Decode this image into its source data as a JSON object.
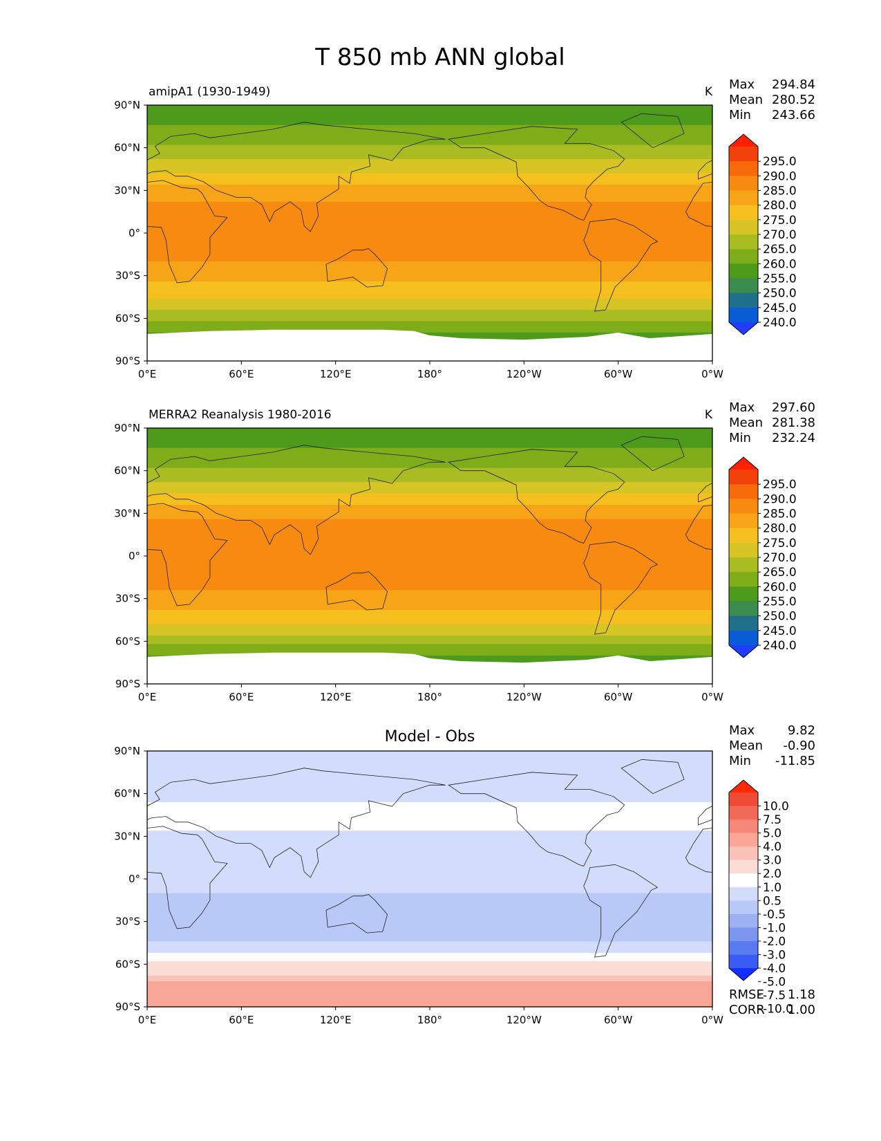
{
  "figure": {
    "title": "T 850 mb ANN global"
  },
  "colors": {
    "abs_levels": [
      {
        "color": "#1f3cff"
      },
      {
        "color": "#0a5bd6"
      },
      {
        "color": "#1f6f8b"
      },
      {
        "color": "#3b8a4e"
      },
      {
        "color": "#4e9a1c"
      },
      {
        "color": "#7fad1a"
      },
      {
        "color": "#a9bd22"
      },
      {
        "color": "#d6c524"
      },
      {
        "color": "#f5bf1f"
      },
      {
        "color": "#f7a418"
      },
      {
        "color": "#f78a10"
      },
      {
        "color": "#f66a0b"
      },
      {
        "color": "#f2410a"
      },
      {
        "color": "#ff2000"
      }
    ],
    "diff_levels": [
      {
        "color": "#1230ff"
      },
      {
        "color": "#3a5cf5"
      },
      {
        "color": "#5a7af0"
      },
      {
        "color": "#7d96f0"
      },
      {
        "color": "#9cb0f2"
      },
      {
        "color": "#b8c8f7"
      },
      {
        "color": "#d3ddfb"
      },
      {
        "color": "#ffffff"
      },
      {
        "color": "#fcdcd6"
      },
      {
        "color": "#fbc2b8"
      },
      {
        "color": "#f8a698"
      },
      {
        "color": "#f58878"
      },
      {
        "color": "#f26a58"
      },
      {
        "color": "#ef4a36"
      },
      {
        "color": "#ff2a00"
      }
    ],
    "continent_outline": "#202020"
  },
  "chart_data": [
    {
      "type": "heatmap",
      "name": "model",
      "title": "amipA1 (1930-1949)",
      "units": "K",
      "stats": {
        "max_label": "Max",
        "max": "294.84",
        "mean_label": "Mean",
        "mean": "280.52",
        "min_label": "Min",
        "min": "243.66"
      },
      "x_ticks": [
        "0°E",
        "60°E",
        "120°E",
        "180°",
        "120°W",
        "60°W",
        "0°W"
      ],
      "y_ticks": [
        "90°N",
        "60°N",
        "30°N",
        "0°",
        "30°S",
        "60°S",
        "90°S"
      ],
      "xlim": [
        0,
        360
      ],
      "ylim": [
        -90,
        90
      ],
      "colorbar_labels": [
        "295.0",
        "290.0",
        "285.0",
        "280.0",
        "275.0",
        "270.0",
        "265.0",
        "260.0",
        "255.0",
        "250.0",
        "245.0",
        "240.0"
      ],
      "zonal_profile": {
        "lat": [
          90,
          70,
          55,
          42,
          30,
          15,
          0,
          -15,
          -30,
          -45,
          -55,
          -65,
          -90
        ],
        "temp": [
          255,
          262,
          268,
          275,
          283,
          287,
          288,
          287,
          282,
          276,
          270,
          262,
          252
        ]
      },
      "antarctic_boundary": {
        "lon": [
          0,
          40,
          80,
          120,
          150,
          170,
          180,
          200,
          240,
          280,
          300,
          320,
          360
        ],
        "lat": [
          -71,
          -69,
          -68,
          -68,
          -68,
          -69,
          -72,
          -74,
          -75,
          -73,
          -70,
          -74,
          -71
        ]
      }
    },
    {
      "type": "heatmap",
      "name": "obs",
      "title": "MERRA2 Reanalysis 1980-2016",
      "units": "K",
      "stats": {
        "max_label": "Max",
        "max": "297.60",
        "mean_label": "Mean",
        "mean": "281.38",
        "min_label": "Min",
        "min": "232.24"
      },
      "x_ticks": [
        "0°E",
        "60°E",
        "120°E",
        "180°",
        "120°W",
        "60°W",
        "0°W"
      ],
      "y_ticks": [
        "90°N",
        "60°N",
        "30°N",
        "0°",
        "30°S",
        "60°S",
        "90°S"
      ],
      "xlim": [
        0,
        360
      ],
      "ylim": [
        -90,
        90
      ],
      "colorbar_labels": [
        "295.0",
        "290.0",
        "285.0",
        "280.0",
        "275.0",
        "270.0",
        "265.0",
        "260.0",
        "255.0",
        "250.0",
        "245.0",
        "240.0"
      ],
      "zonal_profile": {
        "lat": [
          90,
          70,
          55,
          42,
          30,
          15,
          0,
          -15,
          -30,
          -45,
          -55,
          -65,
          -90
        ],
        "temp": [
          255,
          262,
          268,
          276,
          284,
          289,
          290,
          288,
          283,
          277,
          271,
          262,
          250
        ]
      },
      "antarctic_boundary": {
        "lon": [
          0,
          40,
          80,
          120,
          150,
          170,
          180,
          200,
          240,
          280,
          300,
          320,
          360
        ],
        "lat": [
          -71,
          -69,
          -68,
          -68,
          -68,
          -69,
          -72,
          -74,
          -75,
          -73,
          -70,
          -74,
          -71
        ]
      }
    },
    {
      "type": "heatmap",
      "name": "diff",
      "title": "Model - Obs",
      "units": "",
      "stats": {
        "max_label": "Max",
        "max": "9.82",
        "mean_label": "Mean",
        "mean": "-0.90",
        "min_label": "Min",
        "min": "-11.85"
      },
      "x_ticks": [
        "0°E",
        "60°E",
        "120°E",
        "180°",
        "120°W",
        "60°W",
        "0°W"
      ],
      "y_ticks": [
        "90°N",
        "60°N",
        "30°N",
        "0°",
        "30°S",
        "60°S",
        "90°S"
      ],
      "xlim": [
        0,
        360
      ],
      "ylim": [
        -90,
        90
      ],
      "colorbar_labels": [
        "10.0",
        "7.5",
        "5.0",
        "4.0",
        "3.0",
        "2.0",
        "1.0",
        "0.5",
        "-0.5",
        "-1.0",
        "-2.0",
        "-3.0",
        "-4.0",
        "-5.0",
        "-7.5",
        "-10.0"
      ],
      "zonal_profile": {
        "lat": [
          90,
          65,
          45,
          30,
          15,
          0,
          -20,
          -40,
          -55,
          -65,
          -72,
          -90
        ],
        "diff": [
          -1,
          -1.5,
          -0.5,
          -1.2,
          -1.5,
          -1.8,
          -2.2,
          -2.5,
          -0.6,
          -0.2,
          1.2,
          1.5
        ]
      },
      "extra": {
        "rmse_label": "RMSE",
        "rmse": "1.18",
        "corr_label": "CORR",
        "corr": "1.00"
      }
    }
  ]
}
